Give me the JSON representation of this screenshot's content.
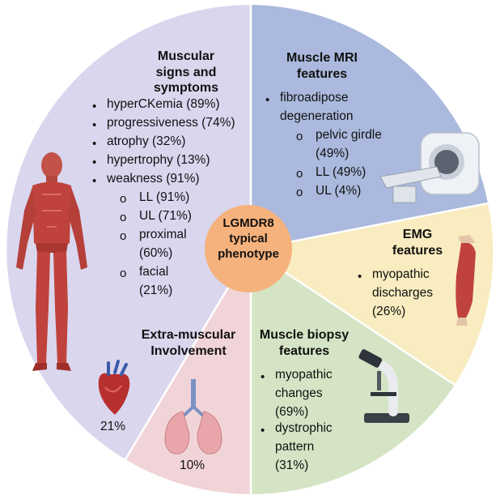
{
  "center": {
    "line1": "LGMDR8",
    "line2": "typical",
    "line3": "phenotype"
  },
  "colors": {
    "muscular": "#d9d6ee",
    "mri": "#aab9dd",
    "emg": "#f8ecc0",
    "biopsy": "#d4e4c4",
    "extra": "#f1d4d8",
    "center": "#f6b27c"
  },
  "muscular": {
    "title_line1": "Muscular",
    "title_line2": "signs and symptoms",
    "items": [
      "hyperCKemia (89%)",
      "progressiveness (74%)",
      "atrophy (32%)",
      "hypertrophy (13%)",
      "weakness (91%)"
    ],
    "sub": [
      "LL (91%)",
      "UL (71%)",
      "proximal",
      "(60%)",
      "facial",
      "(21%)"
    ]
  },
  "mri": {
    "title_line1": "Muscle MRI",
    "title_line2": "features",
    "items": [
      "fibroadipose",
      "degeneration"
    ],
    "sub": [
      "pelvic girdle",
      "(49%)",
      "LL (49%)",
      "UL (4%)"
    ]
  },
  "emg": {
    "title_line1": "EMG",
    "title_line2": "features",
    "items": [
      "myopathic",
      "discharges",
      "(26%)"
    ]
  },
  "biopsy": {
    "title_line1": "Muscle biopsy",
    "title_line2": "features",
    "items": [
      "myopathic",
      "changes",
      "(69%)",
      "dystrophic",
      "pattern",
      "(31%)"
    ]
  },
  "extra": {
    "title_line1": "Extra-muscular",
    "title_line2": "Involvement",
    "heart_pct": "21%",
    "lungs_pct": "10%"
  },
  "icons": [
    "muscle-anatomy-icon",
    "mri-scanner-icon",
    "leg-muscle-icon",
    "microscope-icon",
    "heart-icon",
    "lungs-icon"
  ]
}
